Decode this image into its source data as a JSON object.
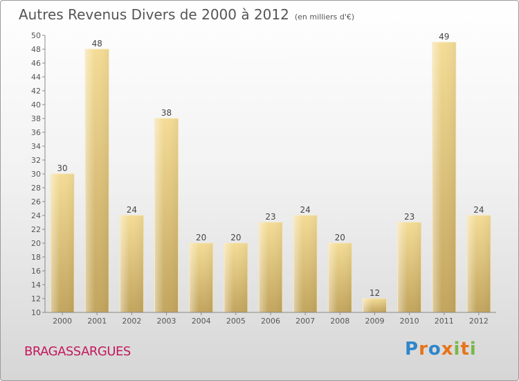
{
  "title": "Autres Revenus Divers de 2000 à 2012",
  "unit": "(en milliers d'€)",
  "commune": "BRAGASSARGUES",
  "logo": {
    "letters": [
      "P",
      "r",
      "o",
      "x",
      "i",
      "t",
      "i"
    ],
    "colors": [
      "#2e86c9",
      "#e8731a",
      "#2e86c9",
      "#e8731a",
      "#7ab648",
      "#e8731a",
      "#7ab648"
    ]
  },
  "chart_data": {
    "type": "bar",
    "categories": [
      "2000",
      "2001",
      "2002",
      "2003",
      "2004",
      "2005",
      "2006",
      "2007",
      "2008",
      "2009",
      "2010",
      "2011",
      "2012"
    ],
    "values": [
      30,
      48,
      24,
      38,
      20,
      20,
      23,
      24,
      20,
      12,
      23,
      49,
      24
    ],
    "data_labels": [
      "30",
      "48",
      "24",
      "38",
      "20",
      "20",
      "23",
      "24",
      "20",
      "12",
      "23",
      "49",
      "24"
    ],
    "ylim": [
      10,
      50
    ],
    "yticks": [
      10,
      12,
      14,
      16,
      18,
      20,
      22,
      24,
      26,
      28,
      30,
      32,
      34,
      36,
      38,
      40,
      42,
      44,
      46,
      48,
      50
    ],
    "grid": false,
    "bar_color": "#e9cf82"
  }
}
